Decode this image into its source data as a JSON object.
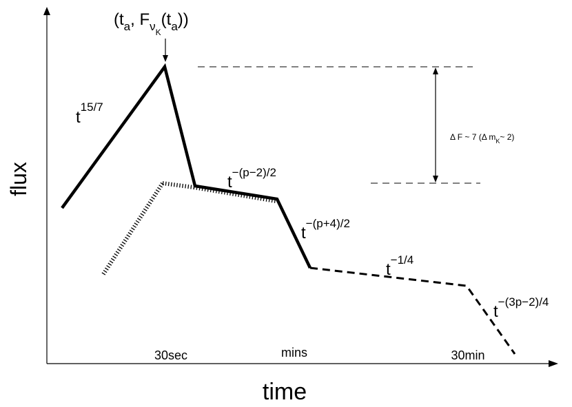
{
  "axes": {
    "xlabel": "time",
    "ylabel": "flux"
  },
  "time_markers": [
    "30sec",
    "mins",
    "30min"
  ],
  "peak_annotation": {
    "open": "(t",
    "t_sub": "a",
    "comma_F": ", F",
    "nu": "ν",
    "K": "K",
    "t_open": "(t",
    "t_sub2": "a",
    "close": "))"
  },
  "segment_labels": [
    {
      "base": "t",
      "exp": "15/7"
    },
    {
      "base": "t",
      "exp": "−(p−2)/2"
    },
    {
      "base": "t",
      "exp": "−(p+4)/2"
    },
    {
      "base": "t",
      "exp": "−1/4"
    },
    {
      "base": "t",
      "exp": "−(3p−2)/4"
    }
  ],
  "delta_annotation": {
    "part1": "Δ F ~ 7 (Δ m",
    "sub": "K",
    "part2": "~ 2)"
  }
}
